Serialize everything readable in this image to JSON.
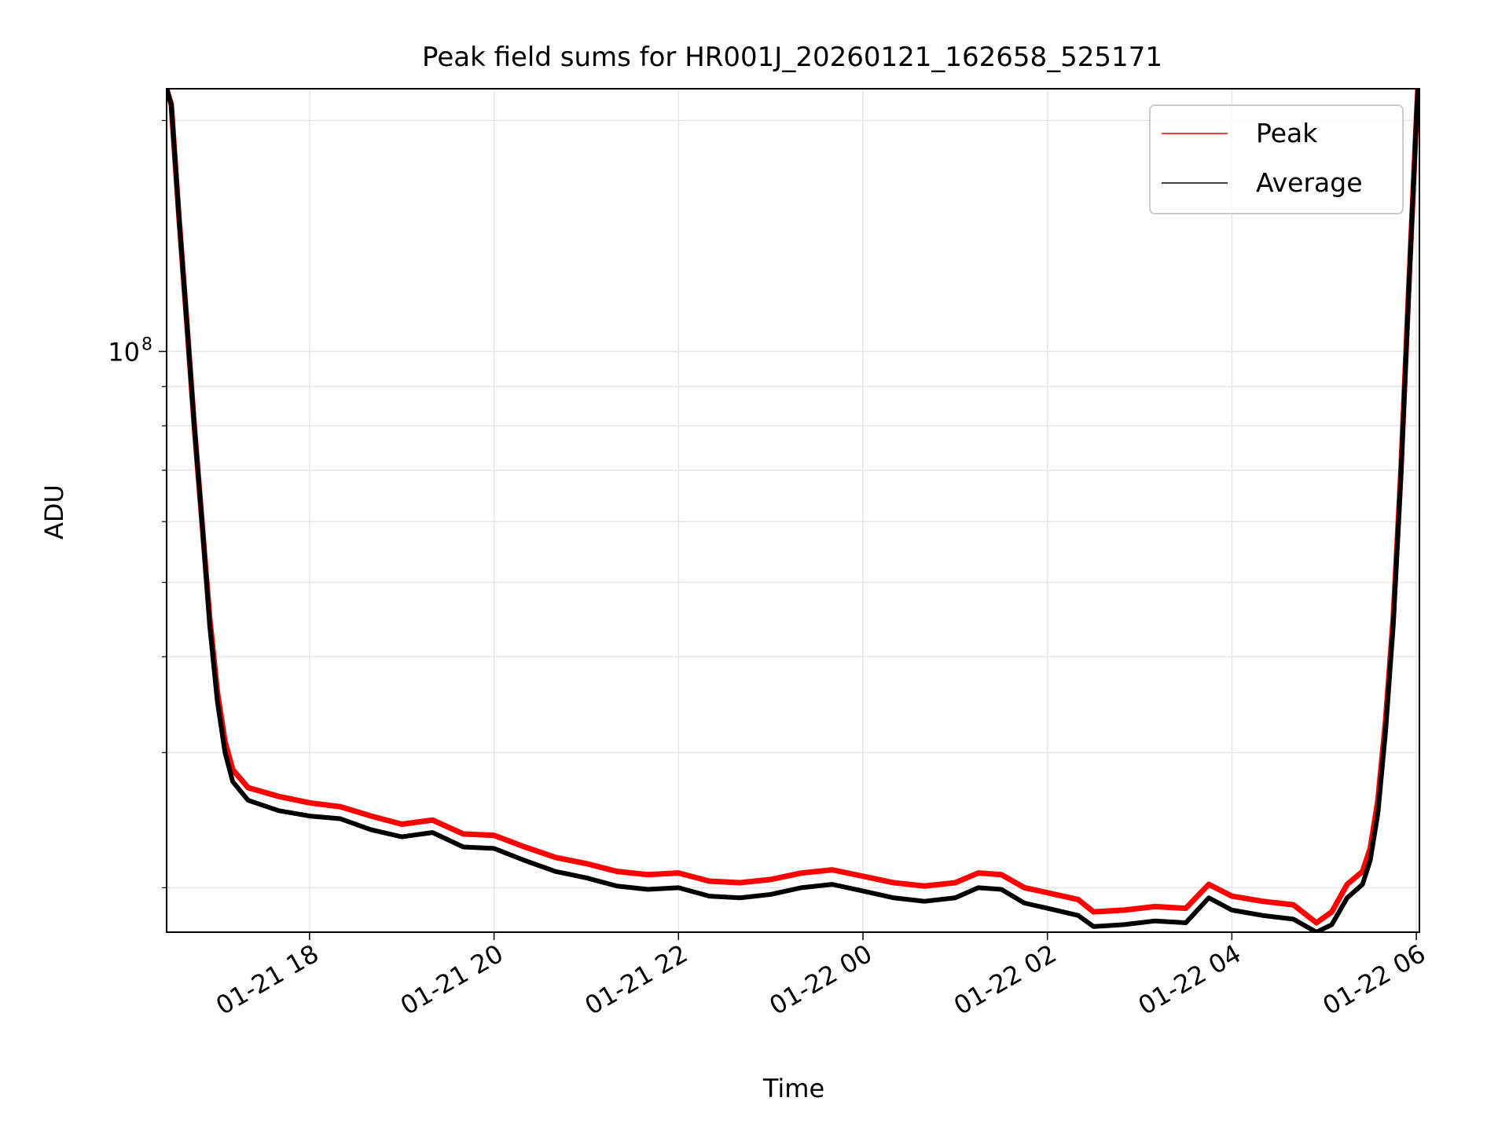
{
  "chart_data": {
    "type": "line",
    "title": "Peak field sums for HR001J_20260121_162658_525171",
    "xlabel": "Time",
    "ylabel": "ADU",
    "x_scale": "time",
    "y_scale": "log",
    "xlim": [
      "2026-01-21 16:27",
      "2026-01-22 06:02"
    ],
    "ylim": [
      17500000,
      220000000
    ],
    "x_ticks": [
      {
        "t": "2026-01-21 18:00",
        "label": "01-21 18"
      },
      {
        "t": "2026-01-21 20:00",
        "label": "01-21 20"
      },
      {
        "t": "2026-01-21 22:00",
        "label": "01-21 22"
      },
      {
        "t": "2026-01-22 00:00",
        "label": "01-22 00"
      },
      {
        "t": "2026-01-22 02:00",
        "label": "01-22 02"
      },
      {
        "t": "2026-01-22 04:00",
        "label": "01-22 04"
      },
      {
        "t": "2026-01-22 06:00",
        "label": "01-22 06"
      }
    ],
    "y_major_ticks": [
      {
        "value": 100000000,
        "label_base": "10",
        "label_exp": "8"
      }
    ],
    "y_minor_ticks": [
      20000000,
      30000000,
      40000000,
      50000000,
      60000000,
      70000000,
      80000000,
      90000000,
      200000000
    ],
    "grid": true,
    "legend_position": "top-right",
    "series": [
      {
        "name": "Peak",
        "color": "#ff0000",
        "points": [
          [
            "2026-01-21 16:27",
            220000000
          ],
          [
            "2026-01-21 16:30",
            210000000
          ],
          [
            "2026-01-21 16:35",
            150000000
          ],
          [
            "2026-01-21 16:40",
            110000000
          ],
          [
            "2026-01-21 16:45",
            80000000
          ],
          [
            "2026-01-21 16:50",
            60000000
          ],
          [
            "2026-01-21 16:55",
            45000000
          ],
          [
            "2026-01-21 17:00",
            36000000
          ],
          [
            "2026-01-21 17:05",
            31000000
          ],
          [
            "2026-01-21 17:10",
            28500000
          ],
          [
            "2026-01-21 17:20",
            27000000
          ],
          [
            "2026-01-21 17:40",
            26300000
          ],
          [
            "2026-01-21 18:00",
            25800000
          ],
          [
            "2026-01-21 18:20",
            25500000
          ],
          [
            "2026-01-21 18:40",
            24800000
          ],
          [
            "2026-01-21 19:00",
            24200000
          ],
          [
            "2026-01-21 19:20",
            24500000
          ],
          [
            "2026-01-21 19:40",
            23500000
          ],
          [
            "2026-01-21 20:00",
            23400000
          ],
          [
            "2026-01-21 20:20",
            22600000
          ],
          [
            "2026-01-21 20:40",
            21900000
          ],
          [
            "2026-01-21 21:00",
            21500000
          ],
          [
            "2026-01-21 21:20",
            21000000
          ],
          [
            "2026-01-21 21:40",
            20800000
          ],
          [
            "2026-01-21 22:00",
            20900000
          ],
          [
            "2026-01-21 22:20",
            20400000
          ],
          [
            "2026-01-21 22:40",
            20300000
          ],
          [
            "2026-01-21 23:00",
            20500000
          ],
          [
            "2026-01-21 23:20",
            20900000
          ],
          [
            "2026-01-21 23:40",
            21100000
          ],
          [
            "2026-01-22 00:00",
            20700000
          ],
          [
            "2026-01-22 00:20",
            20300000
          ],
          [
            "2026-01-22 00:40",
            20100000
          ],
          [
            "2026-01-22 01:00",
            20300000
          ],
          [
            "2026-01-22 01:15",
            20900000
          ],
          [
            "2026-01-22 01:30",
            20800000
          ],
          [
            "2026-01-22 01:45",
            20000000
          ],
          [
            "2026-01-22 02:00",
            19700000
          ],
          [
            "2026-01-22 02:20",
            19300000
          ],
          [
            "2026-01-22 02:30",
            18600000
          ],
          [
            "2026-01-22 02:50",
            18700000
          ],
          [
            "2026-01-22 03:10",
            18900000
          ],
          [
            "2026-01-22 03:30",
            18800000
          ],
          [
            "2026-01-22 03:45",
            20200000
          ],
          [
            "2026-01-22 04:00",
            19500000
          ],
          [
            "2026-01-22 04:20",
            19200000
          ],
          [
            "2026-01-22 04:40",
            19000000
          ],
          [
            "2026-01-22 04:55",
            18000000
          ],
          [
            "2026-01-22 05:05",
            18600000
          ],
          [
            "2026-01-22 05:15",
            20200000
          ],
          [
            "2026-01-22 05:25",
            21000000
          ],
          [
            "2026-01-22 05:30",
            22500000
          ],
          [
            "2026-01-22 05:35",
            26000000
          ],
          [
            "2026-01-22 05:40",
            33000000
          ],
          [
            "2026-01-22 05:45",
            45000000
          ],
          [
            "2026-01-22 05:50",
            70000000
          ],
          [
            "2026-01-22 05:55",
            120000000
          ],
          [
            "2026-01-22 06:00",
            200000000
          ],
          [
            "2026-01-22 06:01",
            220000000
          ]
        ]
      },
      {
        "name": "Average",
        "color": "#000000",
        "points": [
          [
            "2026-01-21 16:27",
            220000000
          ],
          [
            "2026-01-21 16:30",
            210000000
          ],
          [
            "2026-01-21 16:35",
            150000000
          ],
          [
            "2026-01-21 16:40",
            110000000
          ],
          [
            "2026-01-21 16:45",
            80000000
          ],
          [
            "2026-01-21 16:50",
            60000000
          ],
          [
            "2026-01-21 16:55",
            44000000
          ],
          [
            "2026-01-21 17:00",
            35000000
          ],
          [
            "2026-01-21 17:05",
            30000000
          ],
          [
            "2026-01-21 17:10",
            27500000
          ],
          [
            "2026-01-21 17:20",
            26000000
          ],
          [
            "2026-01-21 17:40",
            25200000
          ],
          [
            "2026-01-21 18:00",
            24800000
          ],
          [
            "2026-01-21 18:20",
            24600000
          ],
          [
            "2026-01-21 18:40",
            23800000
          ],
          [
            "2026-01-21 19:00",
            23300000
          ],
          [
            "2026-01-21 19:20",
            23600000
          ],
          [
            "2026-01-21 19:40",
            22600000
          ],
          [
            "2026-01-21 20:00",
            22500000
          ],
          [
            "2026-01-21 20:20",
            21700000
          ],
          [
            "2026-01-21 20:40",
            21000000
          ],
          [
            "2026-01-21 21:00",
            20600000
          ],
          [
            "2026-01-21 21:20",
            20100000
          ],
          [
            "2026-01-21 21:40",
            19900000
          ],
          [
            "2026-01-21 22:00",
            20000000
          ],
          [
            "2026-01-21 22:20",
            19500000
          ],
          [
            "2026-01-21 22:40",
            19400000
          ],
          [
            "2026-01-21 23:00",
            19600000
          ],
          [
            "2026-01-21 23:20",
            20000000
          ],
          [
            "2026-01-21 23:40",
            20200000
          ],
          [
            "2026-01-22 00:00",
            19800000
          ],
          [
            "2026-01-22 00:20",
            19400000
          ],
          [
            "2026-01-22 00:40",
            19200000
          ],
          [
            "2026-01-22 01:00",
            19400000
          ],
          [
            "2026-01-22 01:15",
            20000000
          ],
          [
            "2026-01-22 01:30",
            19900000
          ],
          [
            "2026-01-22 01:45",
            19100000
          ],
          [
            "2026-01-22 02:00",
            18800000
          ],
          [
            "2026-01-22 02:20",
            18400000
          ],
          [
            "2026-01-22 02:30",
            17800000
          ],
          [
            "2026-01-22 02:50",
            17900000
          ],
          [
            "2026-01-22 03:10",
            18100000
          ],
          [
            "2026-01-22 03:30",
            18000000
          ],
          [
            "2026-01-22 03:45",
            19400000
          ],
          [
            "2026-01-22 04:00",
            18700000
          ],
          [
            "2026-01-22 04:20",
            18400000
          ],
          [
            "2026-01-22 04:40",
            18200000
          ],
          [
            "2026-01-22 04:55",
            17500000
          ],
          [
            "2026-01-22 05:05",
            17900000
          ],
          [
            "2026-01-22 05:15",
            19400000
          ],
          [
            "2026-01-22 05:25",
            20200000
          ],
          [
            "2026-01-22 05:30",
            21700000
          ],
          [
            "2026-01-22 05:35",
            25000000
          ],
          [
            "2026-01-22 05:40",
            32000000
          ],
          [
            "2026-01-22 05:45",
            44000000
          ],
          [
            "2026-01-22 05:50",
            69000000
          ],
          [
            "2026-01-22 05:55",
            119000000
          ],
          [
            "2026-01-22 06:00",
            200000000
          ],
          [
            "2026-01-22 06:01",
            220000000
          ]
        ]
      }
    ]
  }
}
